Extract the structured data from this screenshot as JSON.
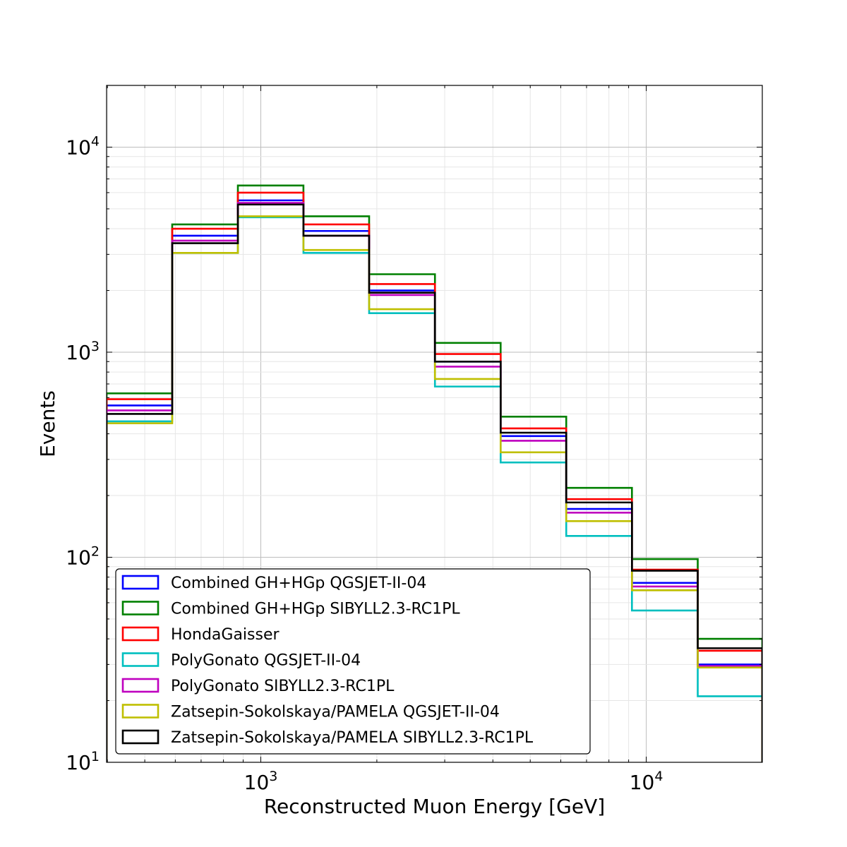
{
  "chart_data": {
    "type": "step-histogram",
    "xlabel": "Reconstructed Muon Energy [GeV]",
    "ylabel": "Events",
    "xscale": "log",
    "yscale": "log",
    "xlim": [
      398,
      20000
    ],
    "ylim": [
      10,
      20000
    ],
    "grid": true,
    "legend_position": "lower-left",
    "bin_edges": [
      398,
      589,
      872,
      1290,
      1910,
      2830,
      4190,
      6200,
      9180,
      13600,
      20000
    ],
    "x_ticks": [
      {
        "value": 1000,
        "base": "10",
        "exp": "3"
      },
      {
        "value": 10000,
        "base": "10",
        "exp": "4"
      }
    ],
    "y_ticks": [
      {
        "value": 10,
        "base": "10",
        "exp": "1"
      },
      {
        "value": 100,
        "base": "10",
        "exp": "2"
      },
      {
        "value": 1000,
        "base": "10",
        "exp": "3"
      },
      {
        "value": 10000,
        "base": "10",
        "exp": "4"
      }
    ],
    "series": [
      {
        "name": "Combined GH+HGp QGSJET-II-04",
        "color": "#0000ff",
        "values": [
          550,
          3700,
          5500,
          3900,
          2000,
          900,
          390,
          172,
          75,
          30
        ]
      },
      {
        "name": "Combined GH+HGp SIBYLL2.3-RC1PL",
        "color": "#008000",
        "values": [
          630,
          4200,
          6500,
          4600,
          2400,
          1110,
          485,
          218,
          98,
          40
        ]
      },
      {
        "name": "HondaGaisser",
        "color": "#ff0000",
        "values": [
          590,
          4000,
          6000,
          4200,
          2150,
          980,
          425,
          192,
          87,
          35
        ]
      },
      {
        "name": "PolyGonato QGSJET-II-04",
        "color": "#00bfbf",
        "values": [
          460,
          3050,
          4550,
          3050,
          1550,
          680,
          290,
          127,
          55,
          21
        ]
      },
      {
        "name": "PolyGonato SIBYLL2.3-RC1PL",
        "color": "#bf00bf",
        "values": [
          520,
          3500,
          5350,
          3700,
          1900,
          850,
          370,
          165,
          72,
          29.5
        ]
      },
      {
        "name": "Zatsepin-Sokolskaya/PAMELA QGSJET-II-04",
        "color": "#bfbf00",
        "values": [
          450,
          3050,
          4600,
          3150,
          1620,
          740,
          325,
          150,
          69,
          29
        ]
      },
      {
        "name": "Zatsepin-Sokolskaya/PAMELA SIBYLL2.3-RC1PL",
        "color": "#000000",
        "values": [
          500,
          3400,
          5250,
          3700,
          1950,
          900,
          405,
          185,
          86,
          36
        ]
      }
    ]
  }
}
